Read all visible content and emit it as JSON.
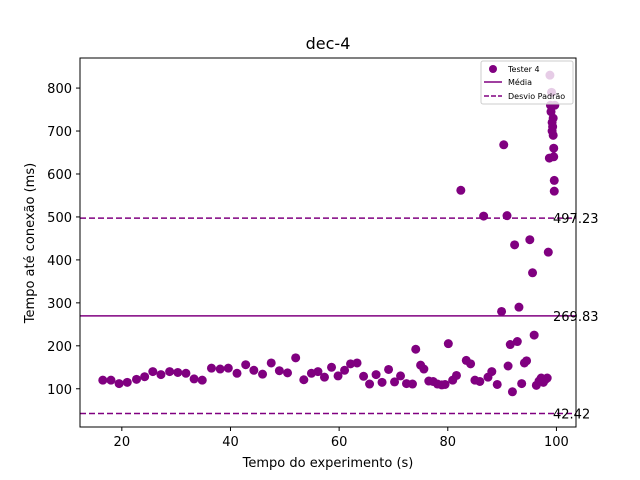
{
  "chart_data": {
    "type": "scatter",
    "title": "dec-4",
    "xlabel": "Tempo do experimento (s)",
    "ylabel": "Tempo até conexão (ms)",
    "xlim": [
      12.3,
      103.6
    ],
    "ylim": [
      11,
      870
    ],
    "xticks": [
      20,
      40,
      60,
      80,
      100
    ],
    "yticks": [
      100,
      200,
      300,
      400,
      500,
      600,
      700,
      800
    ],
    "grid": false,
    "legend_position": "top-right",
    "colors": {
      "series": "#800080"
    },
    "series": [
      {
        "name": "Tester 4",
        "points": [
          [
            16.5,
            120
          ],
          [
            18,
            120
          ],
          [
            19.5,
            112
          ],
          [
            21,
            115
          ],
          [
            22.7,
            122
          ],
          [
            24.2,
            128
          ],
          [
            25.7,
            140
          ],
          [
            27.2,
            133
          ],
          [
            28.8,
            140
          ],
          [
            30.3,
            138
          ],
          [
            31.8,
            136
          ],
          [
            33.3,
            123
          ],
          [
            34.8,
            120
          ],
          [
            36.5,
            148
          ],
          [
            38.1,
            146
          ],
          [
            39.6,
            148
          ],
          [
            41.2,
            136
          ],
          [
            42.8,
            156
          ],
          [
            44.3,
            143
          ],
          [
            45.9,
            134
          ],
          [
            47.5,
            160
          ],
          [
            49,
            142
          ],
          [
            50.5,
            137
          ],
          [
            52,
            172
          ],
          [
            53.5,
            121
          ],
          [
            54.9,
            136
          ],
          [
            56.1,
            140
          ],
          [
            57.3,
            127
          ],
          [
            58.6,
            150
          ],
          [
            59.8,
            130
          ],
          [
            61,
            143
          ],
          [
            62.1,
            158
          ],
          [
            63.3,
            160
          ],
          [
            64.5,
            129
          ],
          [
            65.6,
            111
          ],
          [
            66.8,
            133
          ],
          [
            67.9,
            115
          ],
          [
            69.1,
            145
          ],
          [
            70.2,
            116
          ],
          [
            71.3,
            130
          ],
          [
            72.4,
            112
          ],
          [
            73.5,
            111
          ],
          [
            74.1,
            192
          ],
          [
            75,
            155
          ],
          [
            75.6,
            146
          ],
          [
            76.5,
            118
          ],
          [
            77.3,
            117
          ],
          [
            78.1,
            111
          ],
          [
            78.9,
            109
          ],
          [
            79.5,
            110
          ],
          [
            80.1,
            205
          ],
          [
            80.9,
            120
          ],
          [
            81.6,
            131
          ],
          [
            82.4,
            562
          ],
          [
            83.4,
            166
          ],
          [
            84.2,
            158
          ],
          [
            85,
            120
          ],
          [
            85.9,
            117
          ],
          [
            86.6,
            502
          ],
          [
            87.4,
            127
          ],
          [
            88.1,
            140
          ],
          [
            89.1,
            110
          ],
          [
            89.9,
            280
          ],
          [
            90.3,
            668
          ],
          [
            90.9,
            503
          ],
          [
            91.1,
            153
          ],
          [
            91.5,
            203
          ],
          [
            91.9,
            93
          ],
          [
            92.3,
            435
          ],
          [
            92.8,
            210
          ],
          [
            93.1,
            290
          ],
          [
            93.6,
            112
          ],
          [
            94.1,
            160
          ],
          [
            94.5,
            165
          ],
          [
            95.1,
            447
          ],
          [
            95.6,
            370
          ],
          [
            95.9,
            225
          ],
          [
            96.3,
            108
          ],
          [
            96.8,
            118
          ],
          [
            97.2,
            125
          ],
          [
            97.6,
            115
          ],
          [
            98,
            122
          ],
          [
            98.3,
            125
          ],
          [
            98.5,
            418
          ],
          [
            98.7,
            637
          ],
          [
            98.8,
            830
          ],
          [
            98.9,
            760
          ],
          [
            99,
            745
          ],
          [
            99.1,
            790
          ],
          [
            99.2,
            720
          ],
          [
            99.2,
            700
          ],
          [
            99.3,
            710
          ],
          [
            99.4,
            690
          ],
          [
            99.4,
            730
          ],
          [
            99.5,
            640
          ],
          [
            99.5,
            660
          ],
          [
            99.6,
            585
          ],
          [
            99.6,
            560
          ],
          [
            99.7,
            760
          ]
        ]
      }
    ],
    "reference_lines": [
      {
        "name": "Média",
        "value": 269.83,
        "label": "269.83",
        "style": "solid"
      },
      {
        "name": "Desvio Padrão",
        "value": 497.23,
        "label": "497.23",
        "style": "dashed"
      },
      {
        "value": 42.42,
        "label": "42.42",
        "style": "dashed"
      }
    ]
  }
}
